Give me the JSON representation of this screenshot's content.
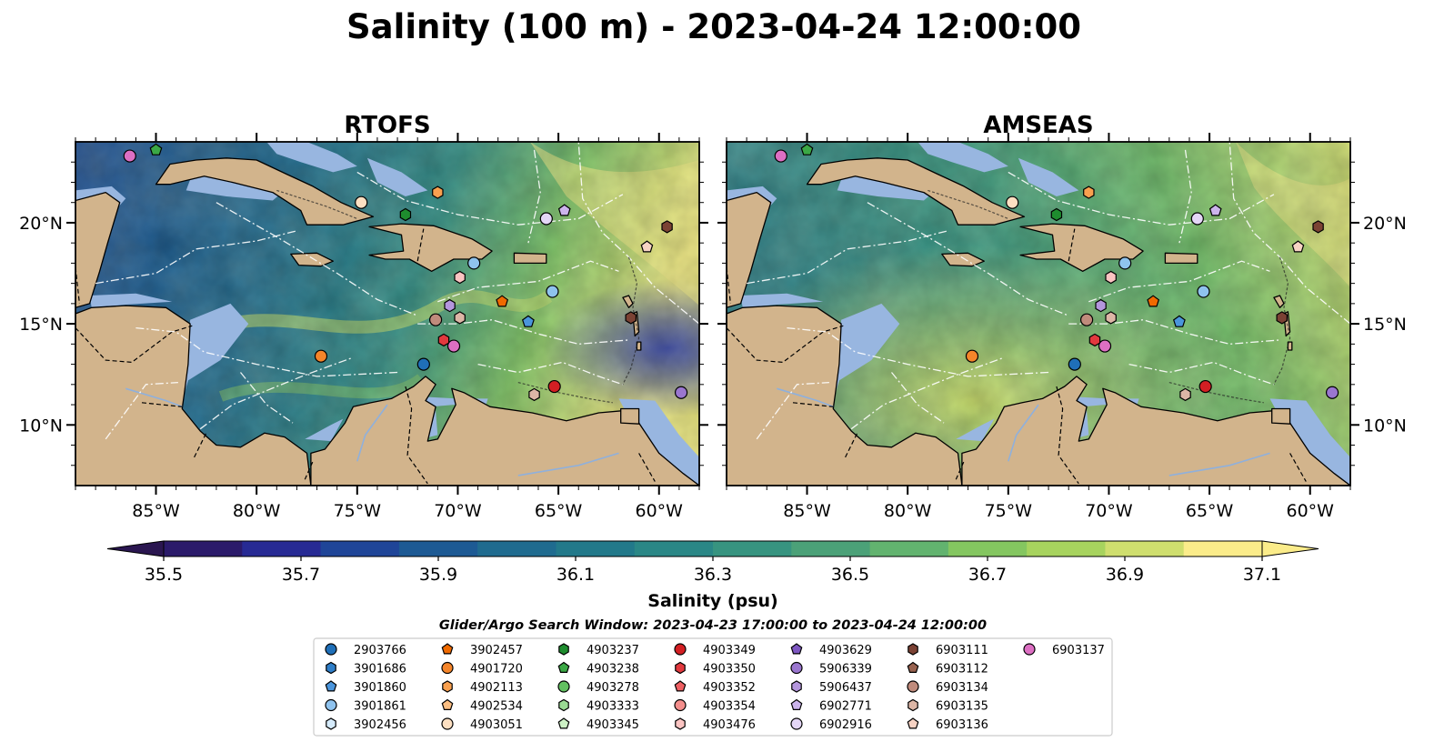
{
  "title": "Salinity (100 m) - 2023-04-24 12:00:00",
  "panels": [
    {
      "title": "RTOFS",
      "model": "rtofs"
    },
    {
      "title": "AMSEAS",
      "model": "amseas"
    }
  ],
  "axes": {
    "lon_range": [
      -89,
      -58
    ],
    "lat_range": [
      7,
      24
    ],
    "lon_ticks": [
      "85°W",
      "80°W",
      "75°W",
      "70°W",
      "65°W",
      "60°W"
    ],
    "lat_ticks": [
      "20°N",
      "15°N",
      "10°N"
    ]
  },
  "colorbar": {
    "label": "Salinity (psu)",
    "ticks": [
      "35.5",
      "35.7",
      "35.9",
      "36.1",
      "36.3",
      "36.5",
      "36.7",
      "36.9",
      "37.1"
    ],
    "colors": [
      "#2b1a6a",
      "#272a94",
      "#1f4598",
      "#1d5a94",
      "#1f6b8f",
      "#22798a",
      "#2a8786",
      "#379480",
      "#4ba178",
      "#62b36f",
      "#84c660",
      "#a7d35e",
      "#cfde6e",
      "#fbec8a"
    ]
  },
  "search_window": "Glider/Argo Search Window: 2023-04-23 17:00:00 to 2023-04-24 12:00:00",
  "colors": {
    "land": "#d2b48c",
    "shelf": "#98b6e0",
    "coast": "#000000"
  },
  "legend": [
    {
      "id": "2903766",
      "marker": "circle",
      "color": "#1f6fb8"
    },
    {
      "id": "3901686",
      "marker": "hexagon",
      "color": "#2f7ec8"
    },
    {
      "id": "3901860",
      "marker": "pentagon",
      "color": "#4a95dc"
    },
    {
      "id": "3901861",
      "marker": "circle",
      "color": "#8fc3ee"
    },
    {
      "id": "3902456",
      "marker": "hexagon",
      "color": "#d5ebfb"
    },
    {
      "id": "3902457",
      "marker": "pentagon",
      "color": "#f06a00"
    },
    {
      "id": "4901720",
      "marker": "circle",
      "color": "#f5852a"
    },
    {
      "id": "4902113",
      "marker": "hexagon",
      "color": "#f9a04f"
    },
    {
      "id": "4902534",
      "marker": "pentagon",
      "color": "#fbbe82"
    },
    {
      "id": "4903051",
      "marker": "circle",
      "color": "#fde0c2"
    },
    {
      "id": "4903237",
      "marker": "hexagon",
      "color": "#1e8c2e"
    },
    {
      "id": "4903238",
      "marker": "pentagon",
      "color": "#3ba845"
    },
    {
      "id": "4903278",
      "marker": "circle",
      "color": "#62c060"
    },
    {
      "id": "4903333",
      "marker": "hexagon",
      "color": "#9ad993"
    },
    {
      "id": "4903345",
      "marker": "pentagon",
      "color": "#cdf1c5"
    },
    {
      "id": "4903349",
      "marker": "circle",
      "color": "#d31f23"
    },
    {
      "id": "4903350",
      "marker": "hexagon",
      "color": "#e2393e"
    },
    {
      "id": "4903352",
      "marker": "pentagon",
      "color": "#ee5f62"
    },
    {
      "id": "4903354",
      "marker": "circle",
      "color": "#f48e8c"
    },
    {
      "id": "4903476",
      "marker": "hexagon",
      "color": "#fbc4c2"
    },
    {
      "id": "4903629",
      "marker": "pentagon",
      "color": "#7e57c2"
    },
    {
      "id": "5906339",
      "marker": "circle",
      "color": "#9a76cf"
    },
    {
      "id": "5906437",
      "marker": "hexagon",
      "color": "#b496dd"
    },
    {
      "id": "6902771",
      "marker": "pentagon",
      "color": "#ccb4ec"
    },
    {
      "id": "6902916",
      "marker": "circle",
      "color": "#e4d6f6"
    },
    {
      "id": "6903111",
      "marker": "hexagon",
      "color": "#7b4234"
    },
    {
      "id": "6903112",
      "marker": "pentagon",
      "color": "#98624f"
    },
    {
      "id": "6903134",
      "marker": "circle",
      "color": "#c08b7c"
    },
    {
      "id": "6903135",
      "marker": "hexagon",
      "color": "#ddb6a6"
    },
    {
      "id": "6903136",
      "marker": "pentagon",
      "color": "#f7d3c4"
    },
    {
      "id": "6903137",
      "marker": "circle",
      "color": "#dd6fc3"
    }
  ],
  "floats": [
    {
      "id": "6903137",
      "lon": -86.3,
      "lat": 23.3
    },
    {
      "id": "4903238",
      "lon": -85.0,
      "lat": 23.6
    },
    {
      "id": "4903051",
      "lon": -74.8,
      "lat": 21.0
    },
    {
      "id": "4903237",
      "lon": -72.6,
      "lat": 20.4
    },
    {
      "id": "4902113",
      "lon": -71.0,
      "lat": 21.5
    },
    {
      "id": "3901861",
      "lon": -69.2,
      "lat": 18.0
    },
    {
      "id": "4903476",
      "lon": -69.9,
      "lat": 17.3
    },
    {
      "id": "6902916",
      "lon": -65.6,
      "lat": 20.2
    },
    {
      "id": "6902771",
      "lon": -64.7,
      "lat": 20.6
    },
    {
      "id": "6903111",
      "lon": -59.6,
      "lat": 19.8
    },
    {
      "id": "6903136",
      "lon": -60.6,
      "lat": 18.8
    },
    {
      "id": "3902457",
      "lon": -67.8,
      "lat": 16.1
    },
    {
      "id": "3901861",
      "lon": -65.3,
      "lat": 16.6
    },
    {
      "id": "3901860",
      "lon": -66.5,
      "lat": 15.1
    },
    {
      "id": "5906437",
      "lon": -70.4,
      "lat": 15.9
    },
    {
      "id": "6903134",
      "lon": -71.1,
      "lat": 15.2
    },
    {
      "id": "6903135",
      "lon": -69.9,
      "lat": 15.3
    },
    {
      "id": "4903350",
      "lon": -70.7,
      "lat": 14.2
    },
    {
      "id": "6903137",
      "lon": -70.2,
      "lat": 13.9
    },
    {
      "id": "4901720",
      "lon": -76.8,
      "lat": 13.4
    },
    {
      "id": "2903766",
      "lon": -71.7,
      "lat": 13.0
    },
    {
      "id": "4903349",
      "lon": -65.2,
      "lat": 11.9
    },
    {
      "id": "6903135",
      "lon": -66.2,
      "lat": 11.5
    },
    {
      "id": "6903111",
      "lon": -61.4,
      "lat": 15.3
    },
    {
      "id": "5906339",
      "lon": -58.9,
      "lat": 11.6
    }
  ]
}
